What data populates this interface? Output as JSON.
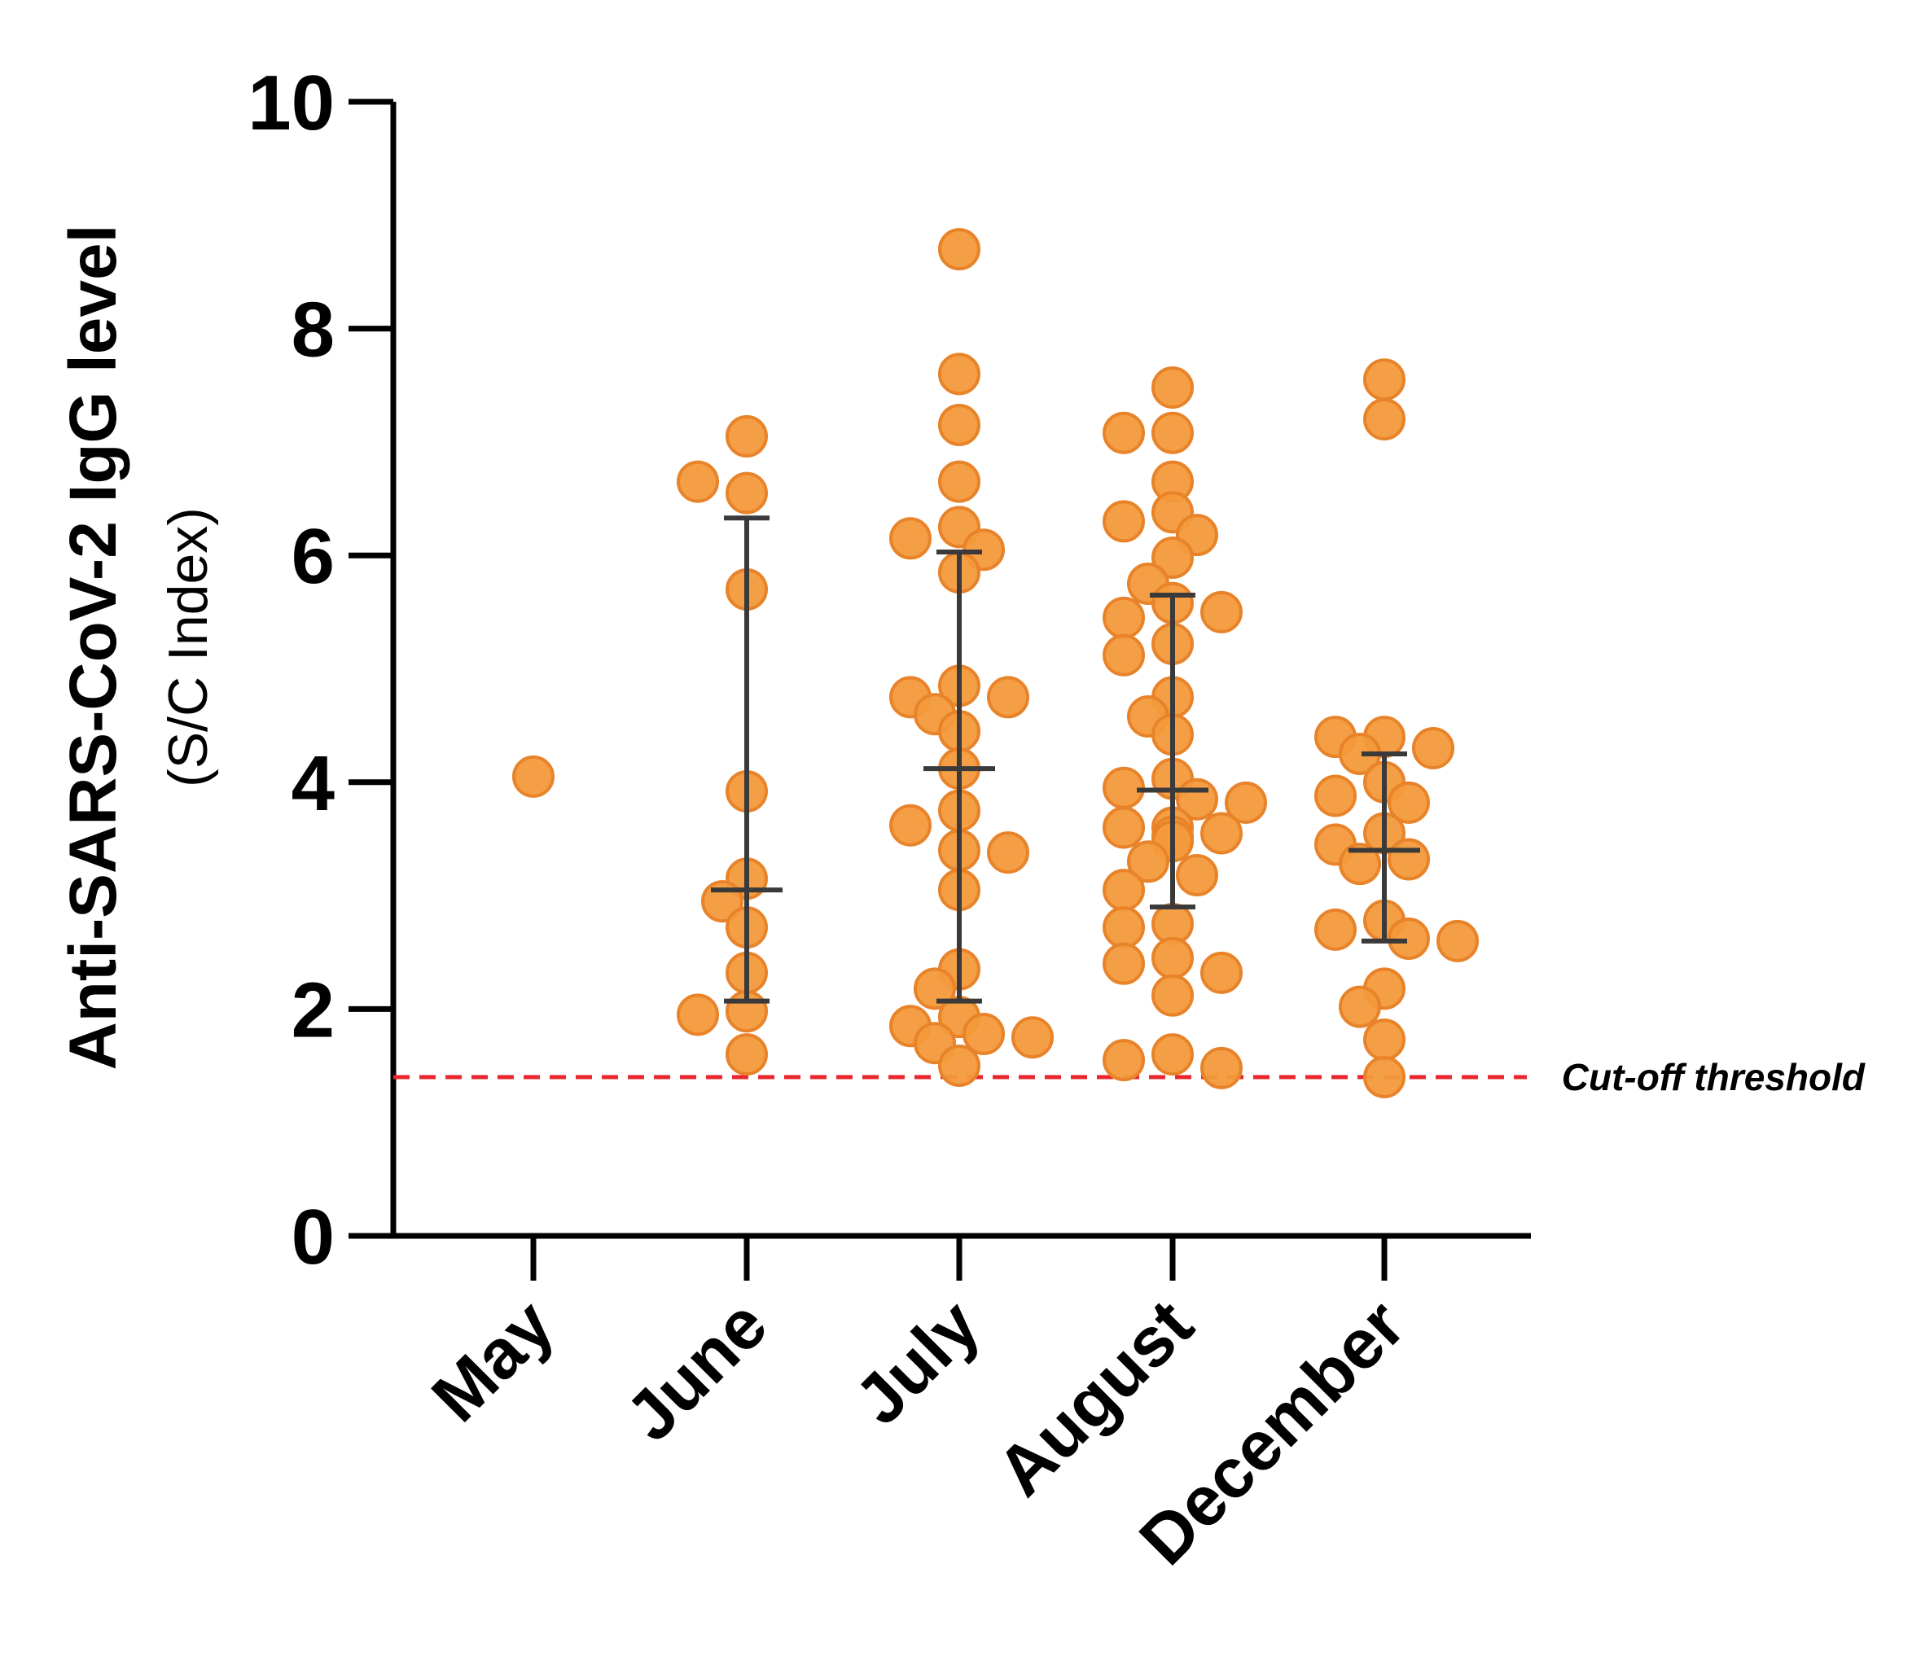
{
  "chart_data": {
    "type": "scatter",
    "subtype": "dot-plot with mean and error bars",
    "ylabel": "Anti-SARS-CoV-2 IgG level",
    "ylabel_sub": "(S/C Index)",
    "xlabel": "",
    "ylim": [
      0,
      10
    ],
    "yticks": [
      "0",
      "2",
      "4",
      "6",
      "8",
      "10"
    ],
    "grid": false,
    "point_color": "#F39A3B",
    "point_edge_color": "#E8832A",
    "cutoff": {
      "value": 1.4,
      "label": "Cut-off threshold",
      "color": "#E8262C"
    },
    "categories": [
      "May",
      "June",
      "July",
      "August",
      "December"
    ],
    "series": [
      {
        "name": "May",
        "values": [
          4.05
        ],
        "mean": null,
        "error": null
      },
      {
        "name": "June",
        "values": [
          7.05,
          6.55,
          6.65,
          5.7,
          3.92,
          3.15,
          2.95,
          2.72,
          2.32,
          1.98,
          1.95,
          1.6
        ],
        "mean": 3.05,
        "error": [
          2.07,
          6.33
        ]
      },
      {
        "name": "July",
        "values": [
          8.7,
          7.6,
          7.15,
          6.65,
          6.25,
          6.15,
          6.05,
          5.85,
          4.85,
          4.75,
          4.75,
          4.6,
          4.45,
          4.12,
          3.75,
          3.62,
          3.4,
          3.38,
          3.05,
          2.35,
          2.18,
          1.93,
          1.85,
          1.78,
          1.75,
          1.7,
          1.5
        ],
        "mean": 4.12,
        "error": [
          2.07,
          6.03
        ]
      },
      {
        "name": "August",
        "values": [
          7.48,
          7.08,
          7.08,
          6.65,
          6.38,
          6.3,
          6.18,
          5.98,
          5.75,
          5.58,
          5.45,
          5.5,
          5.22,
          5.12,
          4.75,
          4.58,
          4.42,
          4.03,
          3.95,
          3.85,
          3.82,
          3.6,
          3.6,
          3.55,
          3.52,
          3.48,
          3.3,
          3.18,
          3.05,
          2.75,
          2.72,
          2.45,
          2.4,
          2.32,
          2.12,
          1.6,
          1.55,
          1.48
        ],
        "mean": 3.93,
        "error": [
          2.9,
          5.65
        ]
      },
      {
        "name": "December",
        "values": [
          7.55,
          7.2,
          4.4,
          4.4,
          4.3,
          4.25,
          4.0,
          3.88,
          3.82,
          3.55,
          3.45,
          3.32,
          3.28,
          2.78,
          2.7,
          2.62,
          2.6,
          2.18,
          2.02,
          1.73,
          1.4
        ],
        "mean": 3.4,
        "error": [
          2.6,
          4.25
        ]
      }
    ]
  }
}
